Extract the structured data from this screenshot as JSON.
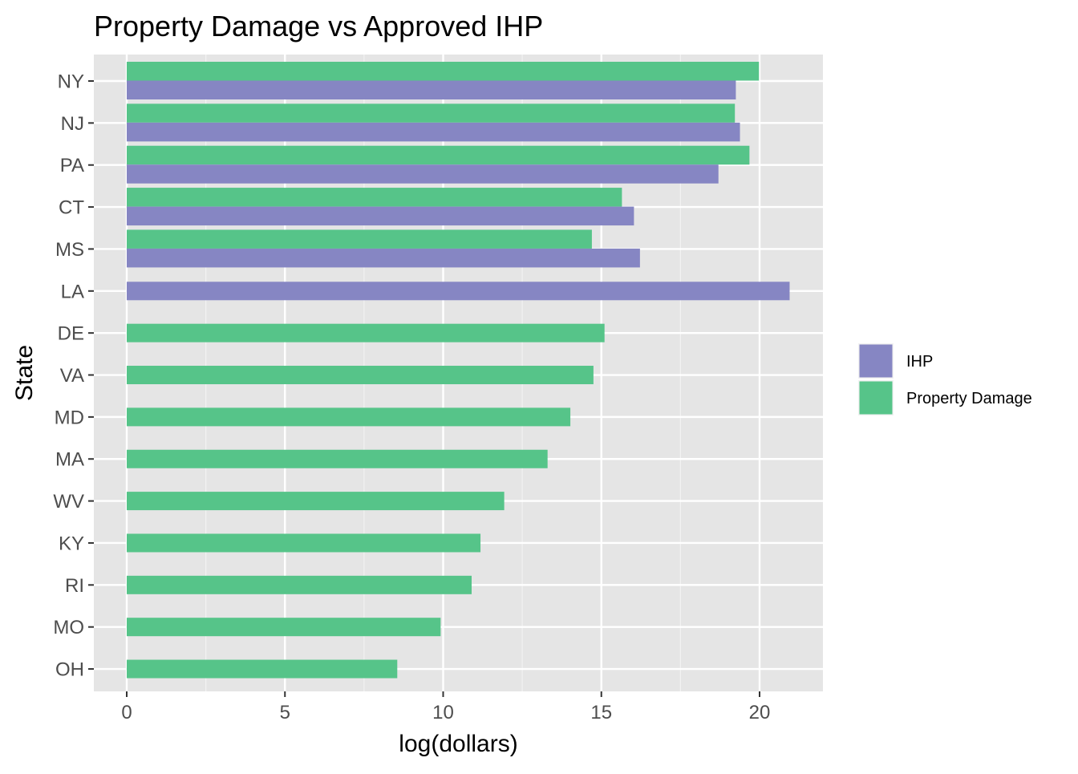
{
  "chart_data": {
    "type": "bar",
    "orientation": "horizontal",
    "title": "Property Damage vs Approved IHP",
    "xlabel": "log(dollars)",
    "ylabel": "State",
    "xlim": [
      -1,
      22
    ],
    "xticks": [
      0,
      5,
      10,
      15,
      20
    ],
    "grid": true,
    "legend_position": "right",
    "categories": [
      "NY",
      "NJ",
      "PA",
      "CT",
      "MS",
      "LA",
      "DE",
      "VA",
      "MD",
      "MA",
      "WV",
      "KY",
      "RI",
      "MO",
      "OH"
    ],
    "series": [
      {
        "name": "IHP",
        "color": "#8686c3",
        "values": [
          19.25,
          19.38,
          18.7,
          16.03,
          16.22,
          20.95,
          null,
          null,
          null,
          null,
          null,
          null,
          null,
          null,
          null
        ]
      },
      {
        "name": "Property Damage",
        "color": "#56c489",
        "values": [
          19.98,
          19.22,
          19.68,
          15.65,
          14.7,
          null,
          15.1,
          14.75,
          14.02,
          13.3,
          11.93,
          11.18,
          10.9,
          9.92,
          8.55
        ]
      }
    ]
  }
}
